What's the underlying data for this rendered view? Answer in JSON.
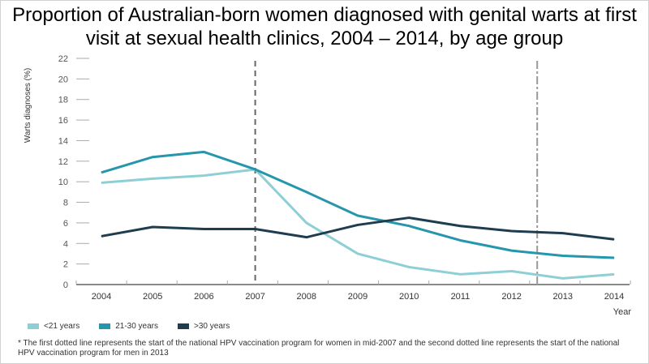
{
  "chart_data": {
    "type": "line",
    "title": "Proportion of Australian-born women diagnosed with genital warts at first visit at sexual health clinics, 2004 – 2014, by age group",
    "xlabel": "Year",
    "ylabel": "Warts diagnoses (%)",
    "x": [
      "2004",
      "2005",
      "2006",
      "2007",
      "2008",
      "2009",
      "2010",
      "2011",
      "2012",
      "2013",
      "2014"
    ],
    "yticks": [
      "0",
      "2",
      "4",
      "6",
      "8",
      "10",
      "12",
      "14",
      "16",
      "18",
      "20",
      "22"
    ],
    "ylim": [
      0,
      22
    ],
    "grid": false,
    "legend_position": "bottom-left",
    "series": [
      {
        "name": "<21 years",
        "color": "#8ecfd6",
        "values": [
          9.9,
          10.3,
          10.6,
          11.2,
          6.0,
          3.0,
          1.7,
          1.0,
          1.3,
          0.6,
          1.0
        ]
      },
      {
        "name": "21-30 years",
        "color": "#2596ac",
        "values": [
          10.9,
          12.4,
          12.9,
          11.2,
          9.0,
          6.7,
          5.7,
          4.3,
          3.3,
          2.8,
          2.6
        ]
      },
      {
        "name": ">30 years",
        "color": "#1e3d4f",
        "values": [
          4.7,
          5.6,
          5.4,
          5.4,
          4.6,
          5.8,
          6.5,
          5.7,
          5.2,
          5.0,
          4.4
        ]
      }
    ],
    "reference_lines_x": [
      2007,
      2012.5
    ],
    "footnote": "*  The first dotted line represents the start of the national HPV vaccination program for women in mid-2007 and the second dotted line represents the start of the national HPV vaccination program for men in 2013"
  }
}
